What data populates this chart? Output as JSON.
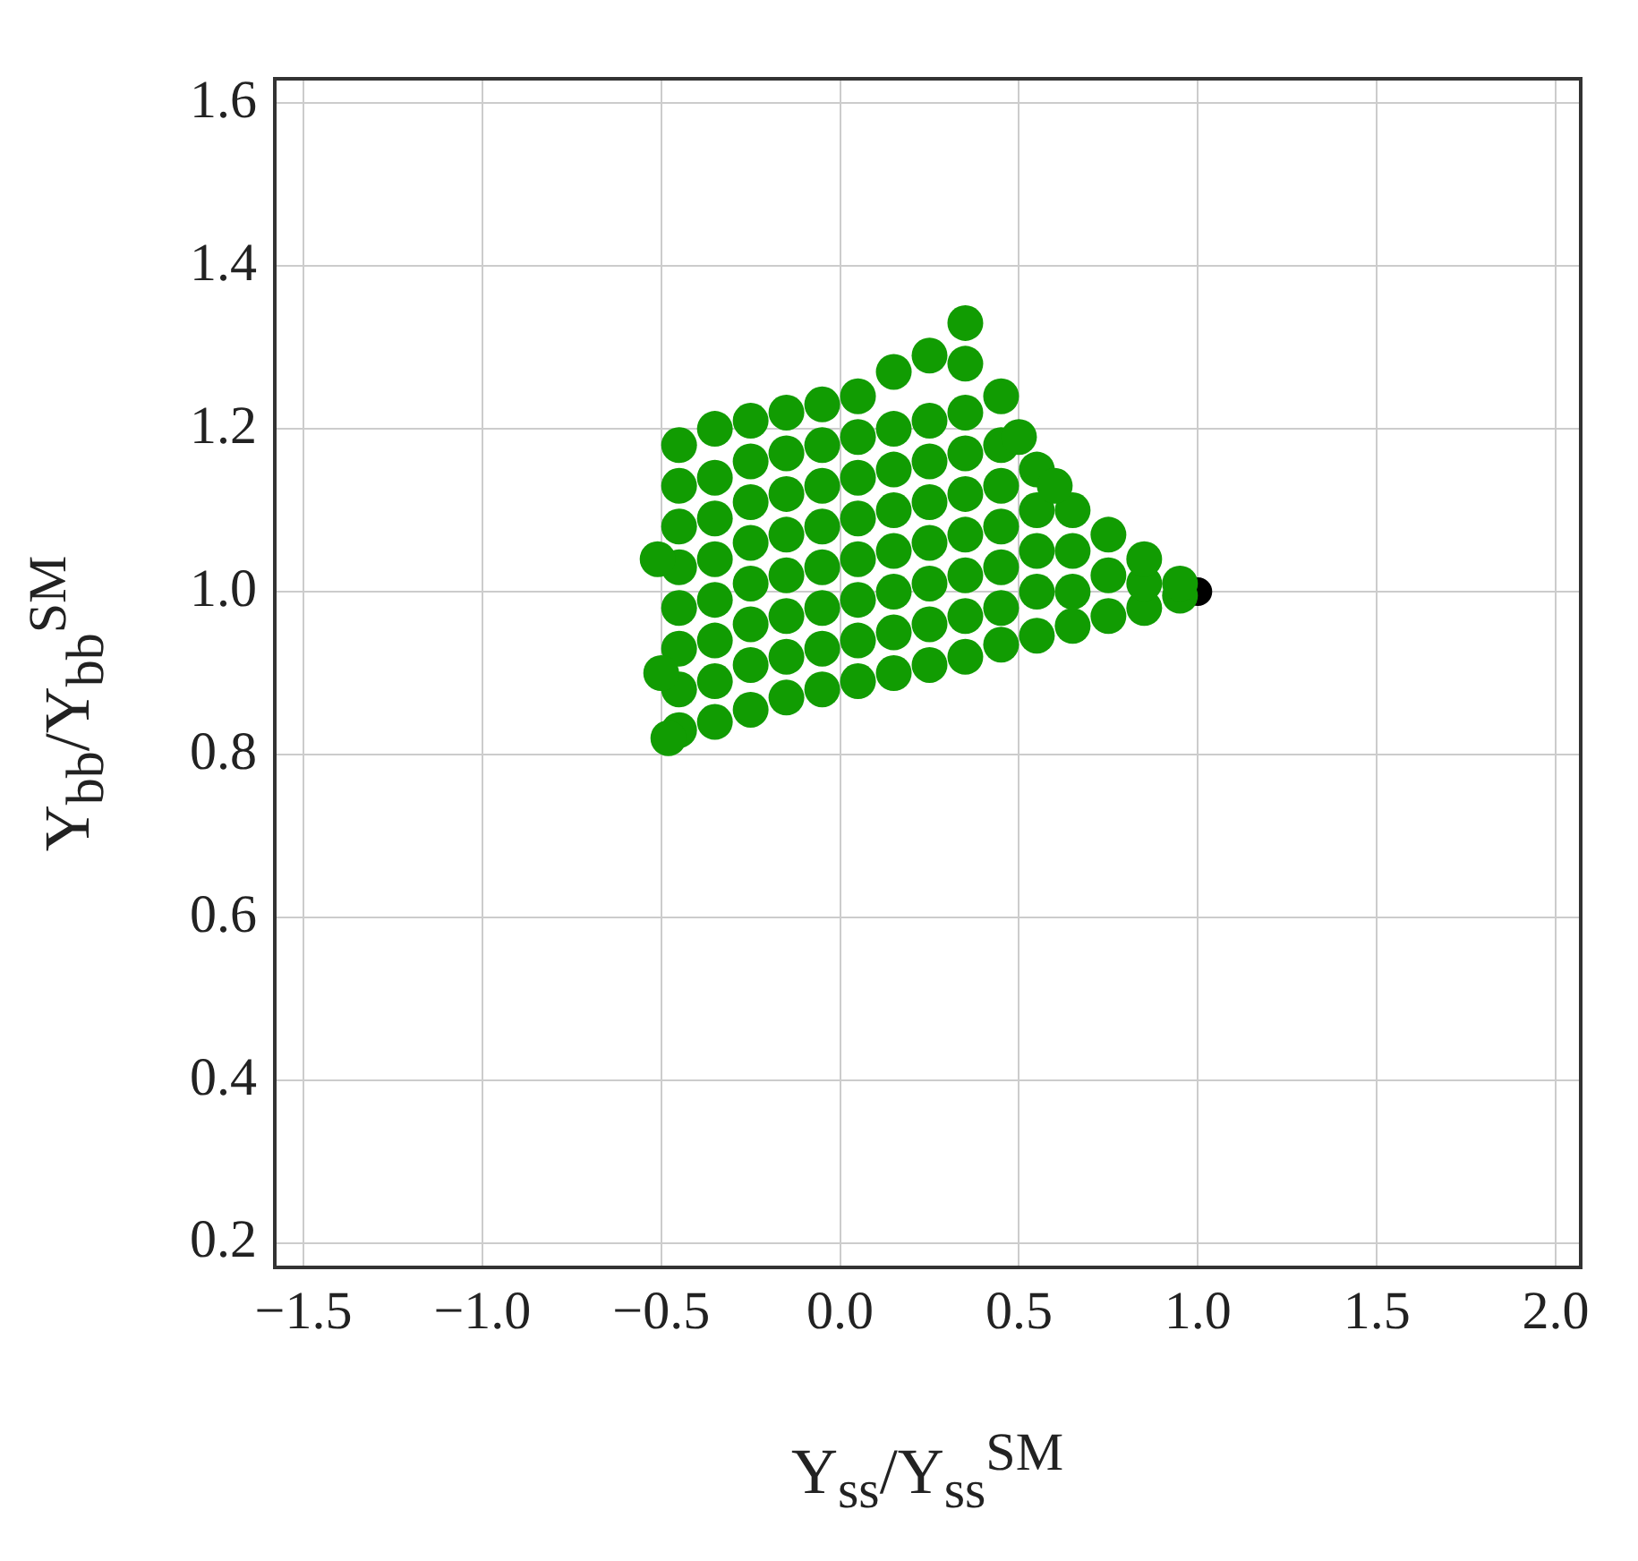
{
  "chart_data": {
    "type": "scatter",
    "xlabel": "Y$_{ss}$/Y$_{ss}$$^{SM}$",
    "ylabel": "Y$_{bb}$/Y$_{bb}$$^{SM}$",
    "xlim": [
      -1.58,
      2.07
    ],
    "ylim": [
      0.17,
      1.63
    ],
    "xticks": [
      {
        "value": -1.5,
        "label": "−1.5"
      },
      {
        "value": -1.0,
        "label": "−1.0"
      },
      {
        "value": -0.5,
        "label": "−0.5"
      },
      {
        "value": 0,
        "label": "0.0"
      },
      {
        "value": 0.5,
        "label": "0.5"
      },
      {
        "value": 1.0,
        "label": "1.0"
      },
      {
        "value": 1.5,
        "label": "1.5"
      },
      {
        "value": 2.0,
        "label": "2.0"
      }
    ],
    "yticks": [
      {
        "value": 0.2,
        "label": "0.2"
      },
      {
        "value": 0.4,
        "label": "0.4"
      },
      {
        "value": 0.6,
        "label": "0.6"
      },
      {
        "value": 0.8,
        "label": "0.8"
      },
      {
        "value": 1.0,
        "label": "1.0"
      },
      {
        "value": 1.2,
        "label": "1.2"
      },
      {
        "value": 1.4,
        "label": "1.4"
      },
      {
        "value": 1.6,
        "label": "1.6"
      }
    ],
    "grid": true,
    "marker": "circle",
    "series": [
      {
        "color": "#119c02",
        "x": [
          -0.45,
          -0.45,
          -0.45,
          -0.45,
          -0.45,
          -0.45,
          -0.45,
          -0.45,
          -0.35,
          -0.35,
          -0.35,
          -0.35,
          -0.35,
          -0.35,
          -0.35,
          -0.35,
          -0.25,
          -0.25,
          -0.25,
          -0.25,
          -0.25,
          -0.25,
          -0.25,
          -0.25,
          -0.15,
          -0.15,
          -0.15,
          -0.15,
          -0.15,
          -0.15,
          -0.15,
          -0.15,
          -0.05,
          -0.05,
          -0.05,
          -0.05,
          -0.05,
          -0.05,
          -0.05,
          -0.05,
          0.05,
          0.05,
          0.05,
          0.05,
          0.05,
          0.05,
          0.05,
          0.05,
          0.15,
          0.15,
          0.15,
          0.15,
          0.15,
          0.15,
          0.15,
          0.15,
          0.25,
          0.25,
          0.25,
          0.25,
          0.25,
          0.25,
          0.25,
          0.25,
          0.35,
          0.35,
          0.35,
          0.35,
          0.35,
          0.35,
          0.35,
          0.35,
          0.35,
          0.45,
          0.45,
          0.45,
          0.45,
          0.45,
          0.45,
          0.45,
          0.55,
          0.55,
          0.55,
          0.55,
          0.55,
          0.65,
          0.65,
          0.65,
          0.65,
          0.75,
          0.75,
          0.75,
          0.85,
          0.85,
          0.85,
          0.95,
          0.95,
          -0.5,
          -0.51,
          -0.48,
          0.5,
          0.6
        ],
        "values": [
          0.83,
          0.88,
          0.93,
          0.98,
          1.03,
          1.08,
          1.13,
          1.18,
          0.84,
          0.89,
          0.94,
          0.99,
          1.04,
          1.09,
          1.14,
          1.2,
          0.855,
          0.91,
          0.96,
          1.01,
          1.06,
          1.11,
          1.16,
          1.21,
          0.87,
          0.92,
          0.97,
          1.02,
          1.07,
          1.12,
          1.17,
          1.22,
          0.88,
          0.93,
          0.98,
          1.03,
          1.08,
          1.13,
          1.18,
          1.23,
          0.89,
          0.94,
          0.99,
          1.04,
          1.09,
          1.14,
          1.19,
          1.24,
          0.9,
          0.95,
          1.0,
          1.05,
          1.1,
          1.15,
          1.2,
          1.27,
          0.91,
          0.96,
          1.01,
          1.06,
          1.11,
          1.16,
          1.21,
          1.29,
          0.92,
          0.97,
          1.02,
          1.07,
          1.12,
          1.17,
          1.22,
          1.28,
          1.33,
          0.935,
          0.98,
          1.03,
          1.08,
          1.13,
          1.18,
          1.24,
          0.946,
          1.0,
          1.05,
          1.1,
          1.15,
          0.958,
          1.0,
          1.05,
          1.1,
          0.97,
          1.02,
          1.07,
          0.98,
          1.01,
          1.04,
          0.995,
          1.01,
          0.9,
          1.04,
          0.82,
          1.19,
          1.13
        ]
      },
      {
        "color": "#000000",
        "x": [
          1.0
        ],
        "values": [
          1.0
        ]
      }
    ]
  }
}
